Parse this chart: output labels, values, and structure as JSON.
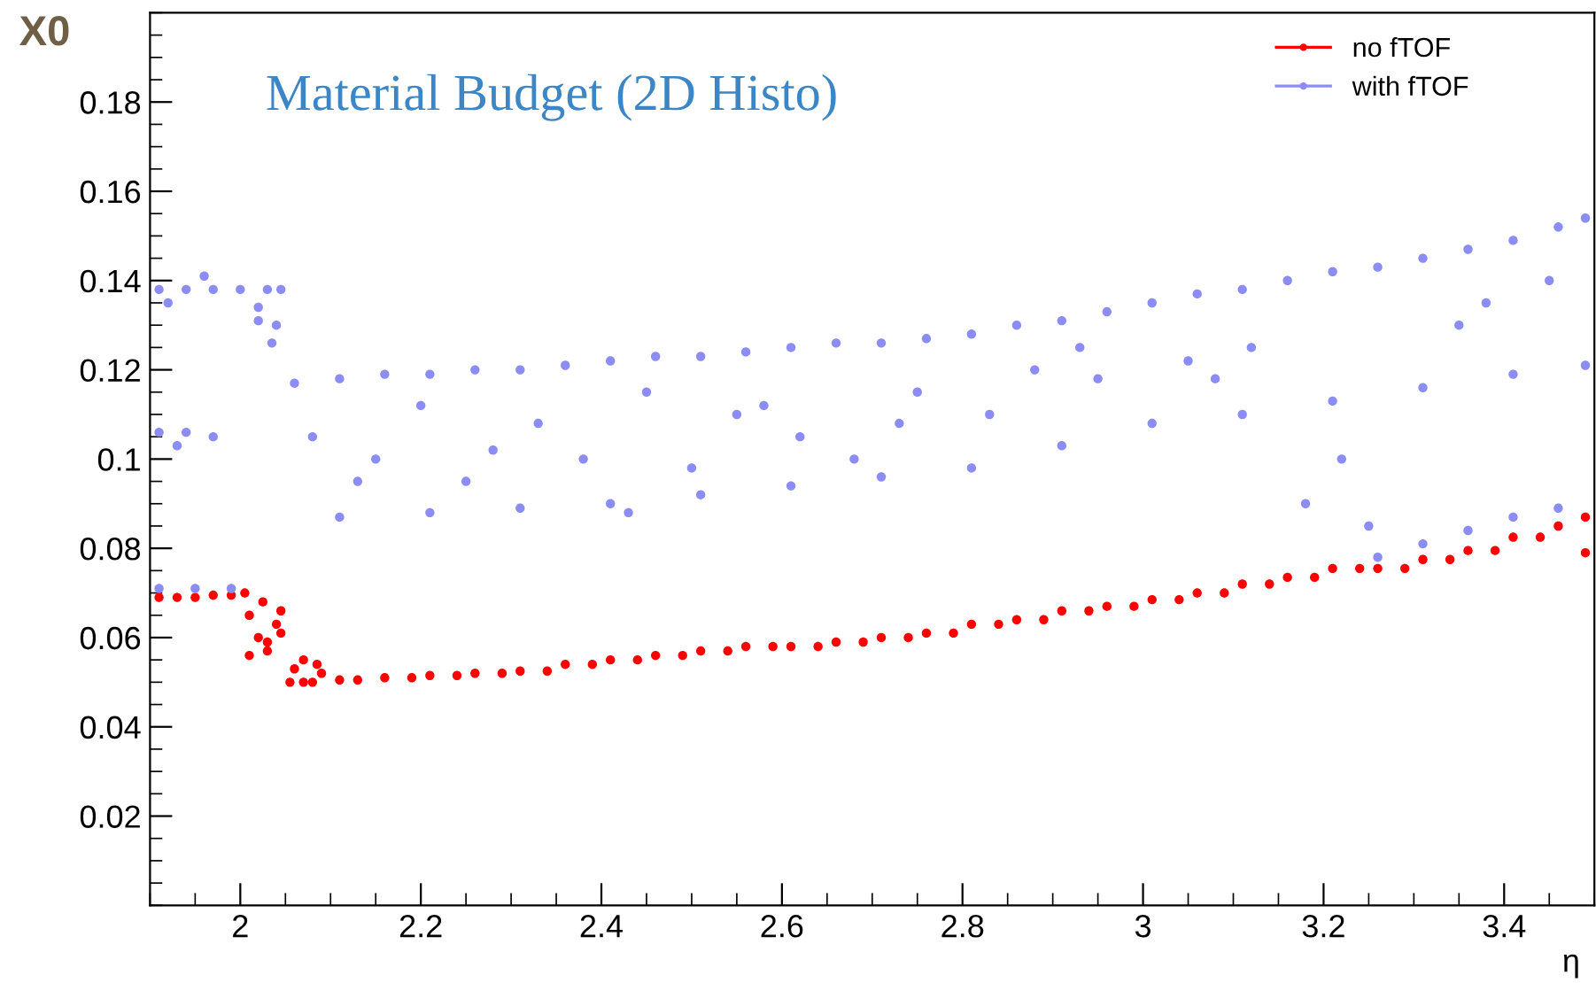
{
  "chart_data": {
    "type": "scatter",
    "title": "Material Budget (2D Histo)",
    "xlabel": "η",
    "ylabel": "X0",
    "xlim": [
      1.9,
      3.5
    ],
    "ylim": [
      0,
      0.2
    ],
    "xticks": [
      2,
      2.2,
      2.4,
      2.6,
      2.8,
      3,
      3.2,
      3.4
    ],
    "yticks": [
      0.02,
      0.04,
      0.06,
      0.08,
      0.1,
      0.12,
      0.14,
      0.16,
      0.18
    ],
    "grid": false,
    "legend": "top right",
    "marker": "circle",
    "series": [
      {
        "name": "no fTOF",
        "color": "#ff0000",
        "x": [
          1.91,
          1.93,
          1.95,
          1.97,
          1.99,
          2.005,
          2.01,
          2.02,
          2.025,
          2.03,
          2.04,
          2.045,
          2.01,
          2.03,
          2.045,
          2.055,
          2.06,
          2.07,
          2.08,
          2.09,
          2.07,
          2.085,
          2.11,
          2.13,
          2.16,
          2.19,
          2.21,
          2.24,
          2.26,
          2.29,
          2.31,
          2.34,
          2.36,
          2.39,
          2.41,
          2.44,
          2.46,
          2.49,
          2.51,
          2.54,
          2.56,
          2.59,
          2.61,
          2.64,
          2.66,
          2.69,
          2.71,
          2.74,
          2.76,
          2.79,
          2.81,
          2.84,
          2.86,
          2.89,
          2.91,
          2.94,
          2.96,
          2.99,
          3.01,
          3.04,
          3.06,
          3.09,
          3.11,
          3.14,
          3.16,
          3.19,
          3.21,
          3.24,
          3.26,
          3.29,
          3.31,
          3.34,
          3.36,
          3.39,
          3.41,
          3.44,
          3.46,
          3.49,
          3.49
        ],
        "values": [
          0.069,
          0.069,
          0.069,
          0.0695,
          0.0695,
          0.07,
          0.065,
          0.06,
          0.068,
          0.057,
          0.063,
          0.066,
          0.056,
          0.059,
          0.061,
          0.05,
          0.053,
          0.055,
          0.05,
          0.052,
          0.05,
          0.054,
          0.0505,
          0.0505,
          0.051,
          0.051,
          0.0515,
          0.0515,
          0.052,
          0.052,
          0.0525,
          0.0525,
          0.054,
          0.054,
          0.055,
          0.055,
          0.056,
          0.056,
          0.057,
          0.057,
          0.058,
          0.058,
          0.058,
          0.058,
          0.059,
          0.059,
          0.06,
          0.06,
          0.061,
          0.061,
          0.063,
          0.063,
          0.064,
          0.064,
          0.066,
          0.066,
          0.067,
          0.067,
          0.0685,
          0.0685,
          0.07,
          0.07,
          0.072,
          0.072,
          0.0735,
          0.0735,
          0.0755,
          0.0755,
          0.0755,
          0.0755,
          0.0775,
          0.0775,
          0.0795,
          0.0795,
          0.0825,
          0.0825,
          0.085,
          0.087,
          0.079
        ]
      },
      {
        "name": "with fTOF",
        "color": "#8c8cf5",
        "x": [
          1.91,
          1.94,
          1.97,
          2.0,
          2.03,
          2.045,
          1.92,
          1.96,
          2.02,
          2.04,
          2.035,
          2.02,
          1.91,
          1.94,
          1.97,
          1.93,
          1.91,
          1.95,
          1.99,
          2.06,
          2.11,
          2.16,
          2.21,
          2.26,
          2.31,
          2.36,
          2.41,
          2.46,
          2.51,
          2.56,
          2.61,
          2.66,
          2.71,
          2.76,
          2.81,
          2.86,
          2.91,
          2.96,
          3.01,
          3.06,
          3.11,
          3.16,
          3.21,
          3.26,
          3.31,
          3.36,
          3.41,
          3.46,
          3.49,
          2.11,
          2.21,
          2.31,
          2.41,
          2.51,
          2.61,
          2.71,
          2.81,
          2.91,
          3.01,
          3.11,
          3.21,
          3.31,
          3.41,
          3.49,
          2.08,
          2.15,
          2.2,
          2.25,
          2.33,
          2.38,
          2.45,
          2.5,
          2.55,
          2.62,
          2.68,
          2.75,
          2.83,
          2.88,
          2.95,
          3.05,
          3.12,
          3.18,
          3.25,
          3.35,
          3.45,
          2.13,
          2.28,
          2.43,
          2.58,
          2.73,
          2.93,
          3.08,
          3.22,
          3.38,
          3.26,
          3.31,
          3.36,
          3.41,
          3.46
        ],
        "values": [
          0.138,
          0.138,
          0.138,
          0.138,
          0.138,
          0.138,
          0.135,
          0.141,
          0.134,
          0.13,
          0.126,
          0.131,
          0.106,
          0.106,
          0.105,
          0.103,
          0.071,
          0.071,
          0.071,
          0.117,
          0.118,
          0.119,
          0.119,
          0.12,
          0.12,
          0.121,
          0.122,
          0.123,
          0.123,
          0.124,
          0.125,
          0.126,
          0.126,
          0.127,
          0.128,
          0.13,
          0.131,
          0.133,
          0.135,
          0.137,
          0.138,
          0.14,
          0.142,
          0.143,
          0.145,
          0.147,
          0.149,
          0.152,
          0.154,
          0.087,
          0.088,
          0.089,
          0.09,
          0.092,
          0.094,
          0.096,
          0.098,
          0.103,
          0.108,
          0.11,
          0.113,
          0.116,
          0.119,
          0.121,
          0.105,
          0.1,
          0.112,
          0.095,
          0.108,
          0.1,
          0.115,
          0.098,
          0.11,
          0.105,
          0.1,
          0.115,
          0.11,
          0.12,
          0.118,
          0.122,
          0.125,
          0.09,
          0.085,
          0.13,
          0.14,
          0.095,
          0.102,
          0.088,
          0.112,
          0.108,
          0.125,
          0.118,
          0.1,
          0.135,
          0.078,
          0.081,
          0.084,
          0.087,
          0.089
        ]
      }
    ]
  }
}
